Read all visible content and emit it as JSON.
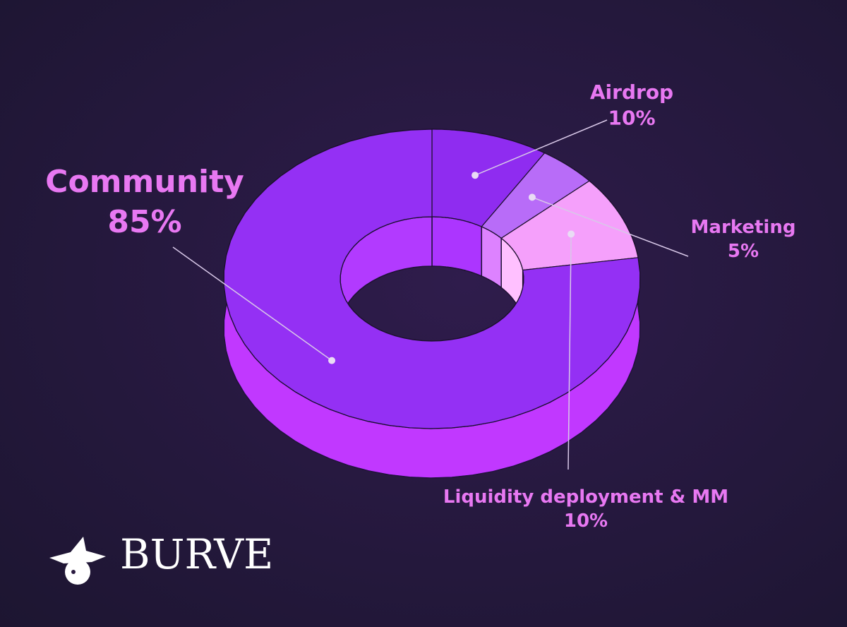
{
  "chart_data": {
    "type": "pie",
    "categories": [
      "Airdrop",
      "Marketing",
      "Liquidity deployment & MM",
      "Community"
    ],
    "values": [
      10,
      5,
      10,
      85
    ],
    "value_labels": [
      "10%",
      "5%",
      "10%",
      "85%"
    ],
    "colors": [
      "#8f2cf0",
      "#b86cf8",
      "#f5a0fb",
      "#9430f4"
    ]
  },
  "logo": "BURVE"
}
